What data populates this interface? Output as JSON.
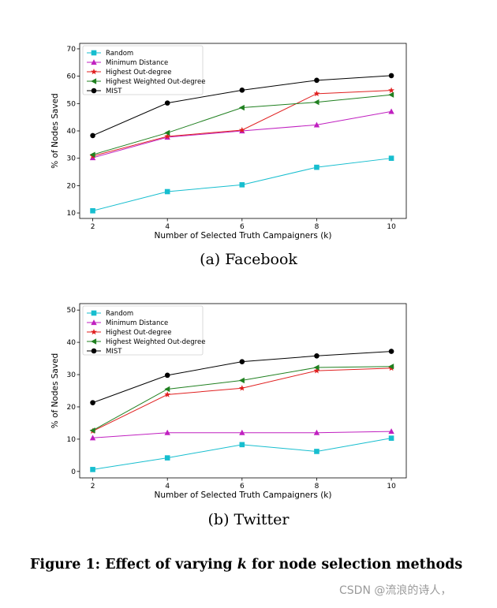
{
  "chart_data": [
    {
      "type": "line",
      "id": "facebook",
      "xlabel": "Number of Selected Truth Campaigners (k)",
      "ylabel": "% of Nodes Saved",
      "x": [
        2,
        4,
        6,
        8,
        10
      ],
      "xticks": [
        "2",
        "4",
        "6",
        "8",
        "10"
      ],
      "yticks": [
        10,
        20,
        30,
        40,
        50,
        60,
        70
      ],
      "ylim": [
        8,
        72
      ],
      "xlim": [
        1.65,
        10.4
      ],
      "legend_position": "top-left",
      "caption": "(a) Facebook",
      "series": [
        {
          "name": "Random",
          "color": "#17becf",
          "marker": "square",
          "values": [
            10.8,
            17.8,
            20.3,
            26.7,
            30.0
          ]
        },
        {
          "name": "Minimum Distance",
          "color": "#c020c0",
          "marker": "triangle-up",
          "values": [
            30.2,
            37.7,
            40.0,
            42.2,
            47.1
          ]
        },
        {
          "name": "Highest Out-degree",
          "color": "#e02020",
          "marker": "star",
          "values": [
            30.8,
            38.0,
            40.3,
            53.6,
            54.8
          ]
        },
        {
          "name": "Highest Weighted Out-degree",
          "color": "#208020",
          "marker": "triangle-left",
          "values": [
            31.3,
            39.3,
            48.5,
            50.5,
            53.2
          ]
        },
        {
          "name": "MIST",
          "color": "#000000",
          "marker": "circle",
          "values": [
            38.3,
            50.2,
            54.9,
            58.5,
            60.2
          ]
        }
      ]
    },
    {
      "type": "line",
      "id": "twitter",
      "xlabel": "Number of Selected Truth Campaigners (k)",
      "ylabel": "% of Nodes Saved",
      "x": [
        2,
        4,
        6,
        8,
        10
      ],
      "xticks": [
        "2",
        "4",
        "6",
        "8",
        "10"
      ],
      "yticks": [
        0,
        10,
        20,
        30,
        40,
        50
      ],
      "ylim": [
        -2,
        52
      ],
      "xlim": [
        1.65,
        10.4
      ],
      "legend_position": "top-left",
      "caption": "(b) Twitter",
      "series": [
        {
          "name": "Random",
          "color": "#17becf",
          "marker": "square",
          "values": [
            0.6,
            4.2,
            8.3,
            6.2,
            10.3
          ]
        },
        {
          "name": "Minimum Distance",
          "color": "#c020c0",
          "marker": "triangle-up",
          "values": [
            10.4,
            12.0,
            12.0,
            12.0,
            12.4
          ]
        },
        {
          "name": "Highest Out-degree",
          "color": "#e02020",
          "marker": "star",
          "values": [
            12.5,
            23.8,
            25.8,
            31.2,
            32.0
          ]
        },
        {
          "name": "Highest Weighted Out-degree",
          "color": "#208020",
          "marker": "triangle-left",
          "values": [
            12.7,
            25.5,
            28.2,
            32.2,
            32.5
          ]
        },
        {
          "name": "MIST",
          "color": "#000000",
          "marker": "circle",
          "values": [
            21.3,
            29.8,
            34.0,
            35.8,
            37.2
          ]
        }
      ]
    }
  ],
  "figure_caption": {
    "prefix": "Figure 1: Effect of varying ",
    "variable": "k",
    "suffix": " for node selection methods"
  },
  "watermark": "CSDN @流浪的诗人，"
}
